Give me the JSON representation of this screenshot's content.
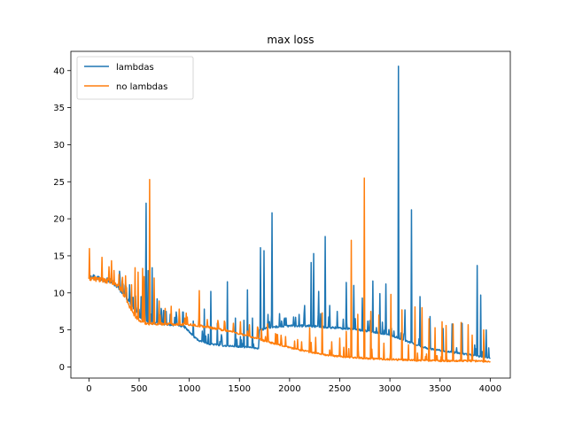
{
  "chart_data": {
    "type": "line",
    "title": "max loss",
    "xlabel": "",
    "ylabel": "",
    "xlim": [
      -180,
      4200
    ],
    "ylim": [
      -1.5,
      42.6
    ],
    "xticks": [
      0,
      500,
      1000,
      1500,
      2000,
      2500,
      3000,
      3500,
      4000
    ],
    "yticks": [
      0,
      5,
      10,
      15,
      20,
      25,
      30,
      35,
      40
    ],
    "grid": false,
    "legend": "top-left",
    "series": [
      {
        "name": "lambdas",
        "color": "#1f77b4",
        "base": [
          [
            0,
            12.2
          ],
          [
            100,
            11.9
          ],
          [
            200,
            11.6
          ],
          [
            250,
            11.2
          ],
          [
            300,
            10.5
          ],
          [
            350,
            9.8
          ],
          [
            400,
            8.8
          ],
          [
            450,
            7.8
          ],
          [
            500,
            6.7
          ],
          [
            550,
            6.1
          ],
          [
            650,
            5.9
          ],
          [
            800,
            5.7
          ],
          [
            900,
            5.6
          ],
          [
            950,
            5.4
          ],
          [
            1000,
            4.7
          ],
          [
            1050,
            4.0
          ],
          [
            1100,
            3.5
          ],
          [
            1200,
            3.1
          ],
          [
            1300,
            2.9
          ],
          [
            1500,
            2.7
          ],
          [
            1690,
            2.5
          ],
          [
            1700,
            4.9
          ],
          [
            1800,
            5.3
          ],
          [
            2000,
            5.5
          ],
          [
            2200,
            5.5
          ],
          [
            2400,
            5.3
          ],
          [
            2600,
            5.1
          ],
          [
            2800,
            4.8
          ],
          [
            3000,
            4.3
          ],
          [
            3100,
            3.8
          ],
          [
            3200,
            3.3
          ],
          [
            3300,
            2.8
          ],
          [
            3400,
            2.4
          ],
          [
            3600,
            2.0
          ],
          [
            3800,
            1.6
          ],
          [
            4000,
            1.2
          ]
        ],
        "spikes": [
          [
            20,
            12.3
          ],
          [
            60,
            11.8
          ],
          [
            110,
            11.7
          ],
          [
            150,
            11.6
          ],
          [
            190,
            12.0
          ],
          [
            220,
            11.4
          ],
          [
            260,
            11.3
          ],
          [
            310,
            12.1
          ],
          [
            340,
            11.2
          ],
          [
            370,
            10.9
          ],
          [
            405,
            11.1
          ],
          [
            440,
            9.4
          ],
          [
            465,
            9.6
          ],
          [
            520,
            9.5
          ],
          [
            548,
            10.5
          ],
          [
            565,
            12.3
          ],
          [
            570,
            22.1
          ],
          [
            590,
            13.0
          ],
          [
            630,
            13.4
          ],
          [
            680,
            9.2
          ],
          [
            720,
            7.9
          ],
          [
            770,
            7.5
          ],
          [
            810,
            7.1
          ],
          [
            855,
            6.7
          ],
          [
            940,
            7.4
          ],
          [
            1040,
            6.2
          ],
          [
            1150,
            7.8
          ],
          [
            1215,
            10.2
          ],
          [
            1280,
            5.9
          ],
          [
            1380,
            11.5
          ],
          [
            1460,
            6.6
          ],
          [
            1545,
            6.3
          ],
          [
            1580,
            10.4
          ],
          [
            1630,
            6.6
          ],
          [
            1710,
            16.1
          ],
          [
            1745,
            15.7
          ],
          [
            1825,
            20.8
          ],
          [
            1900,
            7.2
          ],
          [
            1950,
            6.6
          ],
          [
            2060,
            6.7
          ],
          [
            2150,
            8.3
          ],
          [
            2215,
            14.1
          ],
          [
            2238,
            15.3
          ],
          [
            2290,
            10.2
          ],
          [
            2355,
            17.6
          ],
          [
            2400,
            8.3
          ],
          [
            2475,
            7.5
          ],
          [
            2565,
            11.4
          ],
          [
            2640,
            11.0
          ],
          [
            2725,
            9.3
          ],
          [
            2830,
            11.6
          ],
          [
            2900,
            9.9
          ],
          [
            2960,
            11.2
          ],
          [
            3085,
            40.6
          ],
          [
            3150,
            7.7
          ],
          [
            3215,
            21.2
          ],
          [
            3300,
            9.5
          ],
          [
            3400,
            6.8
          ],
          [
            3530,
            5.2
          ],
          [
            3620,
            5.8
          ],
          [
            3720,
            5.9
          ],
          [
            3870,
            13.7
          ],
          [
            3905,
            9.7
          ],
          [
            3960,
            5.0
          ]
        ]
      },
      {
        "name": "no lambdas",
        "color": "#ff7f0e",
        "base": [
          [
            0,
            11.9
          ],
          [
            200,
            11.5
          ],
          [
            300,
            10.8
          ],
          [
            350,
            9.6
          ],
          [
            400,
            8.2
          ],
          [
            450,
            7.0
          ],
          [
            500,
            6.2
          ],
          [
            550,
            5.9
          ],
          [
            600,
            5.8
          ],
          [
            1000,
            5.7
          ],
          [
            1200,
            5.3
          ],
          [
            1400,
            4.8
          ],
          [
            1600,
            4.1
          ],
          [
            1800,
            3.3
          ],
          [
            2000,
            2.6
          ],
          [
            2200,
            2.0
          ],
          [
            2400,
            1.5
          ],
          [
            2600,
            1.3
          ],
          [
            2800,
            1.1
          ],
          [
            3000,
            1.0
          ],
          [
            3200,
            0.9
          ],
          [
            3500,
            0.8
          ],
          [
            3800,
            0.8
          ],
          [
            4000,
            0.7
          ]
        ],
        "spikes": [
          [
            30,
            12.1
          ],
          [
            90,
            11.8
          ],
          [
            160,
            11.9
          ],
          [
            240,
            11.5
          ],
          [
            300,
            12.5
          ],
          [
            335,
            12.1
          ],
          [
            375,
            10.7
          ],
          [
            425,
            11.1
          ],
          [
            460,
            13.4
          ],
          [
            490,
            12.8
          ],
          [
            535,
            13.3
          ],
          [
            550,
            12.2
          ],
          [
            605,
            25.3
          ],
          [
            650,
            12.0
          ],
          [
            700,
            8.9
          ],
          [
            760,
            7.9
          ],
          [
            820,
            8.2
          ],
          [
            900,
            7.8
          ],
          [
            955,
            6.6
          ],
          [
            1100,
            10.3
          ],
          [
            1180,
            6.4
          ],
          [
            1290,
            5.9
          ],
          [
            1350,
            6.2
          ],
          [
            1440,
            5.9
          ],
          [
            1510,
            6.1
          ],
          [
            1600,
            5.7
          ],
          [
            1680,
            5.4
          ],
          [
            1780,
            5.8
          ],
          [
            1860,
            4.5
          ],
          [
            1960,
            4.1
          ],
          [
            2050,
            3.5
          ],
          [
            2120,
            3.4
          ],
          [
            2200,
            5.3
          ],
          [
            2260,
            4.0
          ],
          [
            2325,
            7.3
          ],
          [
            2420,
            3.4
          ],
          [
            2500,
            3.9
          ],
          [
            2565,
            4.8
          ],
          [
            2615,
            17.1
          ],
          [
            2680,
            7.1
          ],
          [
            2745,
            25.5
          ],
          [
            2810,
            7.5
          ],
          [
            2890,
            7.0
          ],
          [
            2940,
            3.2
          ],
          [
            3010,
            9.8
          ],
          [
            3120,
            7.7
          ],
          [
            3185,
            3.0
          ],
          [
            3250,
            8.1
          ],
          [
            3320,
            8.0
          ],
          [
            3390,
            6.5
          ],
          [
            3450,
            5.3
          ],
          [
            3520,
            6.1
          ],
          [
            3560,
            5.6
          ],
          [
            3630,
            5.8
          ],
          [
            3710,
            6.0
          ],
          [
            3780,
            5.7
          ],
          [
            3820,
            4.3
          ],
          [
            3935,
            5.0
          ]
        ]
      }
    ]
  }
}
